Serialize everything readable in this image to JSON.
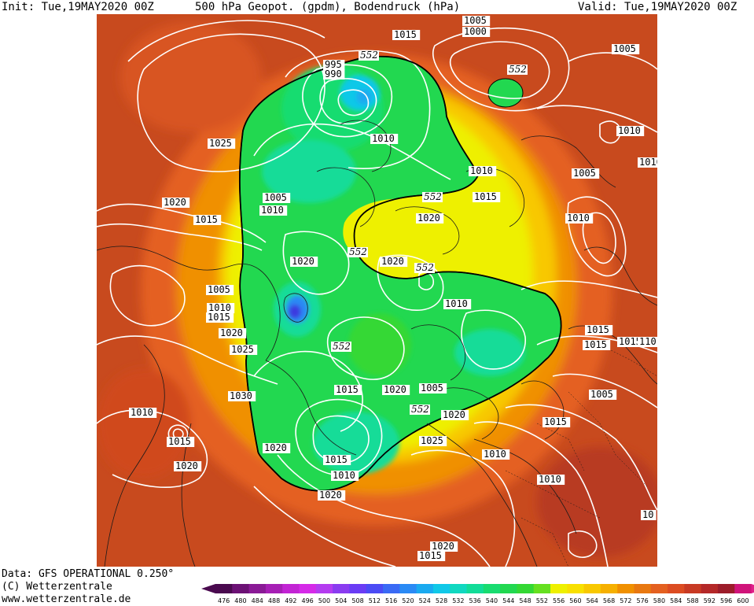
{
  "header": {
    "init": "Init: Tue,19MAY2020 00Z",
    "title": "500 hPa Geopot. (gpdm), Bodendruck (hPa)",
    "valid": "Valid: Tue,19MAY2020 00Z"
  },
  "footer": {
    "data_source": "Data: GFS OPERATIONAL 0.250°",
    "copyright": "(C) Wetterzentrale",
    "website": "www.wetterzentrale.de"
  },
  "legend": {
    "values": [
      "476",
      "480",
      "484",
      "488",
      "492",
      "496",
      "500",
      "504",
      "508",
      "512",
      "516",
      "520",
      "524",
      "528",
      "532",
      "536",
      "540",
      "544",
      "548",
      "552",
      "556",
      "560",
      "564",
      "568",
      "572",
      "576",
      "580",
      "584",
      "588",
      "592",
      "596",
      "600"
    ],
    "colors": [
      "#4a0a4f",
      "#6c1275",
      "#8a1a96",
      "#a61fb5",
      "#c224d4",
      "#d52ae8",
      "#b43cf0",
      "#8a3cf0",
      "#6a3cf5",
      "#4b4bf5",
      "#3a6af5",
      "#2a8af5",
      "#1aaaf0",
      "#10c8e8",
      "#10d8c0",
      "#12dc98",
      "#18dc70",
      "#22d850",
      "#34d834",
      "#66e020",
      "#eef000",
      "#f8e000",
      "#f8c800",
      "#f6b000",
      "#f09000",
      "#e87810",
      "#e46020",
      "#dc4c22",
      "#c83a24",
      "#b42828",
      "#9c1c2a",
      "#d0147a"
    ],
    "left_arrow_color": "#4a0a4f",
    "right_arrow_color": "#e0208a"
  },
  "map": {
    "background_color": "#c84a1e",
    "contour_color": "#ffffff",
    "contour_552_label": "552",
    "pressure_labels": [
      {
        "t": "1005"
      },
      {
        "t": "1000"
      },
      {
        "t": "1015"
      },
      {
        "t": "1005"
      },
      {
        "t": "995"
      },
      {
        "t": "990"
      },
      {
        "t": "1025"
      },
      {
        "t": "1010"
      },
      {
        "t": "1010"
      },
      {
        "t": "1010"
      },
      {
        "t": "1010"
      },
      {
        "t": "1005"
      },
      {
        "t": "1005"
      },
      {
        "t": "1015"
      },
      {
        "t": "1020"
      },
      {
        "t": "1010"
      },
      {
        "t": "1015"
      },
      {
        "t": "1020"
      },
      {
        "t": "1020"
      },
      {
        "t": "1010"
      },
      {
        "t": "1020"
      },
      {
        "t": "1005"
      },
      {
        "t": "1010"
      },
      {
        "t": "1015"
      },
      {
        "t": "1020"
      },
      {
        "t": "1010"
      },
      {
        "t": "1015"
      },
      {
        "t": "1025"
      },
      {
        "t": "1015"
      },
      {
        "t": "1015"
      },
      {
        "t": "1101"
      },
      {
        "t": "1030"
      },
      {
        "t": "1015"
      },
      {
        "t": "1020"
      },
      {
        "t": "1005"
      },
      {
        "t": "1020"
      },
      {
        "t": "1010"
      },
      {
        "t": "1020"
      },
      {
        "t": "1015"
      },
      {
        "t": "1025"
      },
      {
        "t": "1015"
      },
      {
        "t": "1010"
      },
      {
        "t": "1020"
      },
      {
        "t": "1010"
      },
      {
        "t": "1005"
      },
      {
        "t": "1015"
      },
      {
        "t": "1010"
      },
      {
        "t": "1020"
      },
      {
        "t": "10"
      },
      {
        "t": "1020"
      },
      {
        "t": "1015"
      }
    ],
    "geopot_labels": [
      {
        "t": "552"
      },
      {
        "t": "552"
      },
      {
        "t": "552"
      },
      {
        "t": "552"
      },
      {
        "t": "552"
      },
      {
        "t": "552"
      },
      {
        "t": "552"
      }
    ]
  }
}
